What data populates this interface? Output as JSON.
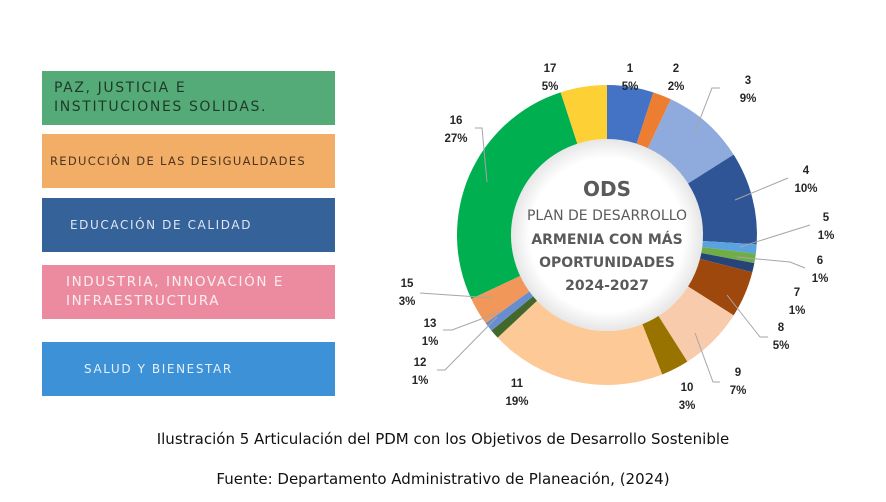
{
  "legend_boxes": [
    {
      "lines": [
        "PAZ, JUSTICIA E",
        "INSTITUCIONES SOLIDAS."
      ],
      "color": "#55ab78"
    },
    {
      "lines": [
        "REDUCCIÓN DE LAS DESIGUALDADES"
      ],
      "color": "#f2ad66"
    },
    {
      "lines": [
        "EDUCACIÓN DE CALIDAD"
      ],
      "color": "#36629a"
    },
    {
      "lines": [
        "INDUSTRIA, INNOVACIÓN E",
        "INFRAESTRUCTURA"
      ],
      "color": "#ec8b9f"
    },
    {
      "lines": [
        "SALUD Y BIENESTAR"
      ],
      "color": "#3d91d6"
    }
  ],
  "chart_data": {
    "type": "pie",
    "variant": "donut",
    "center_title": "ODS",
    "center_lines": [
      "PLAN DE DESARROLLO",
      "ARMENIA CON MÁS",
      "OPORTUNIDADES",
      "2024-2027"
    ],
    "slices": [
      {
        "label": "1",
        "value": 5,
        "pct": "5%",
        "color": "#4472c4"
      },
      {
        "label": "2",
        "value": 2,
        "pct": "2%",
        "color": "#ed7d31"
      },
      {
        "label": "3",
        "value": 9,
        "pct": "9%",
        "color": "#8faadc"
      },
      {
        "label": "4",
        "value": 10,
        "pct": "10%",
        "color": "#2f5597"
      },
      {
        "label": "5",
        "value": 1,
        "pct": "1%",
        "color": "#5ba3e0"
      },
      {
        "label": "6",
        "value": 1,
        "pct": "1%",
        "color": "#70ad47"
      },
      {
        "label": "7",
        "value": 1,
        "pct": "1%",
        "color": "#264478"
      },
      {
        "label": "8",
        "value": 5,
        "pct": "5%",
        "color": "#9e480e"
      },
      {
        "label": "9",
        "value": 7,
        "pct": "7%",
        "color": "#f8cbad"
      },
      {
        "label": "10",
        "value": 3,
        "pct": "3%",
        "color": "#997300"
      },
      {
        "label": "11",
        "value": 19,
        "pct": "19%",
        "color": "#fdc996"
      },
      {
        "label": "12",
        "value": 1,
        "pct": "1%",
        "color": "#43682b"
      },
      {
        "label": "13",
        "value": 1,
        "pct": "1%",
        "color": "#698ed0"
      },
      {
        "label": "15",
        "value": 3,
        "pct": "3%",
        "color": "#f1975a"
      },
      {
        "label": "16",
        "value": 27,
        "pct": "27%",
        "color": "#00b050"
      },
      {
        "label": "17",
        "value": 5,
        "pct": "5%",
        "color": "#fdd035"
      }
    ]
  },
  "caption": "Ilustración 5 Articulación del PDM con los Objetivos de Desarrollo Sostenible",
  "source": "Fuente: Departamento Administrativo de Planeación, (2024)"
}
